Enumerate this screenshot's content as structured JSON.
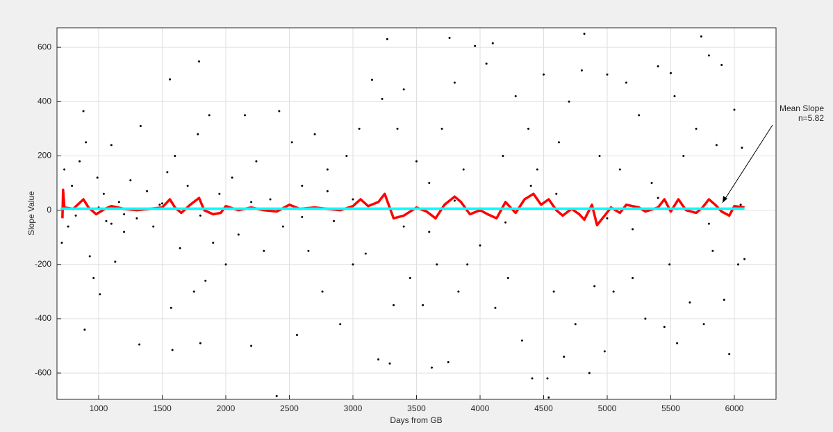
{
  "chart_data": {
    "type": "scatter",
    "xlabel": "Days from GB",
    "ylabel": "Slope Value",
    "annotation": [
      "Mean Slope",
      "n=5.82"
    ],
    "xlim": [
      672,
      6328
    ],
    "ylim": [
      -697,
      672
    ],
    "xticks": [
      1000,
      1500,
      2000,
      2500,
      3000,
      3500,
      4000,
      4500,
      5000,
      5500,
      6000
    ],
    "yticks": [
      -600,
      -400,
      -200,
      0,
      200,
      400,
      600
    ],
    "grid": true,
    "series": [
      {
        "mode": "markers",
        "color": "#000000",
        "x": [
          710,
          730,
          760,
          790,
          820,
          850,
          880,
          890,
          900,
          930,
          960,
          990,
          1010,
          1040,
          1060,
          1100,
          1130,
          1160,
          1200,
          1250,
          1300,
          1320,
          1330,
          1380,
          1430,
          1480,
          1540,
          1560,
          1570,
          1580,
          1600,
          1640,
          1700,
          1750,
          1780,
          1790,
          1800,
          1840,
          1870,
          1900,
          1950,
          2000,
          2050,
          2100,
          2150,
          2200,
          2240,
          2300,
          2350,
          2400,
          2420,
          2450,
          2520,
          2560,
          2600,
          2650,
          2700,
          2760,
          2800,
          2850,
          2900,
          2950,
          3000,
          3050,
          3100,
          3150,
          3200,
          3230,
          3270,
          3290,
          3320,
          3350,
          3400,
          3450,
          3500,
          3550,
          3600,
          3620,
          3660,
          3700,
          3750,
          3760,
          3800,
          3830,
          3870,
          3900,
          3960,
          4000,
          4050,
          4100,
          4120,
          4180,
          4220,
          4280,
          4330,
          4380,
          4410,
          4450,
          4500,
          4530,
          4540,
          4580,
          4620,
          4660,
          4700,
          4750,
          4800,
          4820,
          4860,
          4900,
          4940,
          4980,
          5000,
          5050,
          5100,
          5150,
          5200,
          5250,
          5300,
          5350,
          5400,
          5450,
          5490,
          5500,
          5530,
          5550,
          5600,
          5650,
          5700,
          5740,
          5760,
          5800,
          5830,
          5860,
          5900,
          5920,
          5960,
          6000,
          6030,
          6060,
          6080,
          1000,
          1200,
          1500,
          1800,
          2200,
          2600,
          3000,
          3400,
          3800,
          4200,
          4600,
          5000,
          5400,
          5800,
          6050,
          1100,
          2800,
          3600,
          4400,
          5200
        ],
        "values": [
          -120,
          150,
          -60,
          90,
          -20,
          180,
          365,
          -440,
          250,
          -170,
          -250,
          120,
          -310,
          60,
          -40,
          240,
          -190,
          30,
          -80,
          110,
          -30,
          -495,
          310,
          70,
          -60,
          20,
          140,
          482,
          -360,
          -515,
          200,
          -140,
          90,
          -300,
          280,
          548,
          -490,
          -260,
          350,
          -120,
          60,
          -200,
          120,
          -90,
          350,
          -500,
          180,
          -150,
          40,
          -685,
          365,
          -60,
          250,
          -460,
          90,
          -150,
          280,
          -300,
          150,
          -40,
          -420,
          200,
          -200,
          300,
          -160,
          480,
          -550,
          410,
          630,
          -565,
          -350,
          300,
          445,
          -250,
          180,
          -350,
          100,
          -580,
          -200,
          300,
          -560,
          635,
          470,
          -300,
          150,
          -200,
          605,
          -130,
          540,
          615,
          -360,
          200,
          -250,
          420,
          -480,
          300,
          -620,
          150,
          500,
          -620,
          -690,
          -300,
          250,
          -540,
          400,
          -420,
          515,
          650,
          -600,
          -280,
          200,
          -520,
          500,
          -300,
          150,
          470,
          -250,
          350,
          -400,
          100,
          530,
          -430,
          -200,
          505,
          420,
          -490,
          200,
          -340,
          300,
          640,
          -420,
          570,
          -150,
          240,
          535,
          -330,
          -530,
          370,
          -200,
          230,
          -180,
          10,
          -15,
          25,
          -20,
          30,
          -25,
          40,
          -60,
          35,
          -45,
          60,
          -30,
          45,
          -50,
          20,
          -50,
          70,
          -80,
          90,
          -70
        ]
      },
      {
        "mode": "lines",
        "color": "#ff0000",
        "x": [
          715,
          720,
          730,
          800,
          880,
          920,
          980,
          1050,
          1100,
          1200,
          1300,
          1400,
          1500,
          1560,
          1600,
          1650,
          1720,
          1790,
          1830,
          1900,
          1960,
          2000,
          2100,
          2200,
          2300,
          2400,
          2500,
          2580,
          2700,
          2800,
          2900,
          3000,
          3060,
          3120,
          3200,
          3250,
          3320,
          3400,
          3500,
          3580,
          3650,
          3720,
          3800,
          3850,
          3920,
          4000,
          4060,
          4130,
          4200,
          4280,
          4350,
          4420,
          4480,
          4540,
          4600,
          4650,
          4720,
          4780,
          4820,
          4880,
          4920,
          4980,
          5030,
          5100,
          5150,
          5250,
          5300,
          5400,
          5450,
          5500,
          5560,
          5620,
          5700,
          5750,
          5800,
          5850,
          5900,
          5960,
          6000,
          6080
        ],
        "values": [
          -30,
          75,
          10,
          5,
          40,
          10,
          -15,
          5,
          15,
          5,
          0,
          5,
          10,
          40,
          10,
          -10,
          20,
          45,
          0,
          -15,
          -10,
          15,
          0,
          10,
          0,
          -5,
          20,
          5,
          10,
          5,
          0,
          15,
          40,
          15,
          30,
          60,
          -30,
          -20,
          10,
          -5,
          -30,
          20,
          50,
          30,
          -15,
          0,
          -15,
          -30,
          30,
          -10,
          40,
          60,
          20,
          40,
          0,
          -20,
          5,
          -15,
          -35,
          20,
          -55,
          -20,
          10,
          -10,
          20,
          10,
          -5,
          10,
          40,
          -5,
          40,
          0,
          -10,
          10,
          40,
          20,
          -5,
          -20,
          15,
          10
        ]
      },
      {
        "mode": "lines",
        "color": "#00ffff",
        "x": [
          700,
          6080
        ],
        "values": [
          5.82,
          5.82
        ]
      }
    ]
  }
}
